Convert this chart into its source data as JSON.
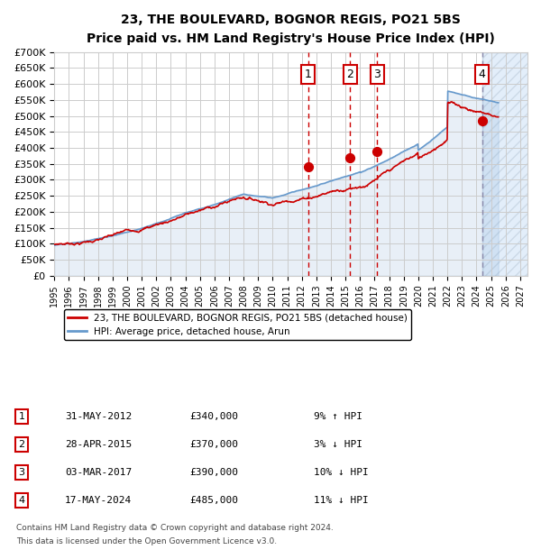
{
  "title": "23, THE BOULEVARD, BOGNOR REGIS, PO21 5BS",
  "subtitle": "Price paid vs. HM Land Registry's House Price Index (HPI)",
  "legend_line1": "23, THE BOULEVARD, BOGNOR REGIS, PO21 5BS (detached house)",
  "legend_line2": "HPI: Average price, detached house, Arun",
  "footer1": "Contains HM Land Registry data © Crown copyright and database right 2024.",
  "footer2": "This data is licensed under the Open Government Licence v3.0.",
  "transactions": [
    {
      "num": 1,
      "date": "31-MAY-2012",
      "price": 340000,
      "pct": "9%",
      "dir": "↑",
      "year": 2012.42
    },
    {
      "num": 2,
      "date": "28-APR-2015",
      "price": 370000,
      "pct": "3%",
      "dir": "↓",
      "year": 2015.33
    },
    {
      "num": 3,
      "date": "03-MAR-2017",
      "price": 390000,
      "pct": "10%",
      "dir": "↓",
      "year": 2017.17
    },
    {
      "num": 4,
      "date": "17-MAY-2024",
      "price": 485000,
      "pct": "11%",
      "dir": "↓",
      "year": 2024.38
    }
  ],
  "hpi_color": "#6699cc",
  "red_color": "#cc0000",
  "dot_color": "#cc0000",
  "vline_colors": [
    "#cc0000",
    "#cc0000",
    "#cc0000",
    "#8888aa"
  ],
  "background_color": "#ffffff",
  "plot_bg_color": "#ffffff",
  "grid_color": "#cccccc",
  "hatch_color": "#aaaacc",
  "ylim": [
    0,
    700000
  ],
  "xmin": 1995.0,
  "xmax": 2027.5,
  "future_start": 2024.38
}
